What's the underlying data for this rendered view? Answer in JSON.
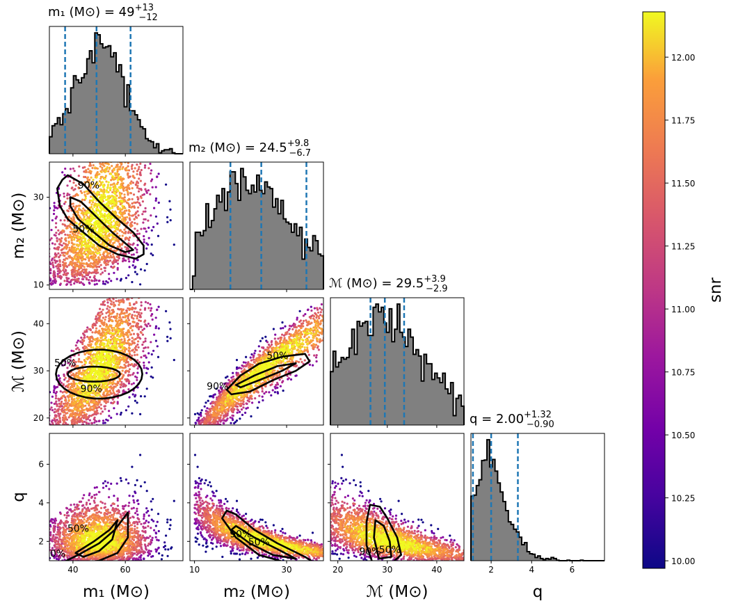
{
  "chart_data": {
    "type": "corner",
    "parameters": [
      {
        "key": "m1",
        "display": "m₁ (M⊙)",
        "range": [
          31,
          82
        ],
        "ticks": [
          40,
          60
        ],
        "title_base": "m₁ (M⊙) = 49",
        "title_sup": "+13",
        "title_sub": "−12",
        "quantiles": [
          37,
          49,
          62
        ]
      },
      {
        "key": "m2",
        "display": "m₂ (M⊙)",
        "range": [
          9,
          38
        ],
        "ticks": [
          10,
          30
        ],
        "title_base": "m₂ (M⊙) = 24.5",
        "title_sup": "+9.8",
        "title_sub": "−6.7",
        "quantiles": [
          17.8,
          24.5,
          34.3
        ]
      },
      {
        "key": "mc",
        "display": "ℳ (M⊙)",
        "range": [
          18.5,
          45.5
        ],
        "ticks": [
          20,
          30,
          40
        ],
        "title_base": "ℳ (M⊙) = 29.5",
        "title_sup": "+3.9",
        "title_sub": "−2.9",
        "quantiles": [
          26.6,
          29.5,
          33.4
        ]
      },
      {
        "key": "q",
        "display": "q",
        "range": [
          1,
          7.6
        ],
        "ticks": [
          2,
          4,
          6
        ],
        "title_base": "q = 2.00",
        "title_sup": "+1.32",
        "title_sub": "−0.90",
        "quantiles": [
          1.1,
          2.0,
          3.32
        ]
      }
    ],
    "contour_labels": [
      "50%",
      "90%"
    ],
    "colorbar": {
      "label": "snr",
      "range": [
        9.97,
        12.18
      ],
      "ticks": [
        "10.00",
        "10.25",
        "10.50",
        "10.75",
        "11.00",
        "11.25",
        "11.50",
        "11.75",
        "12.00"
      ],
      "colormap": "plasma"
    },
    "histogram_fill": "#808080",
    "quantile_line_color": "#1f77b4"
  }
}
